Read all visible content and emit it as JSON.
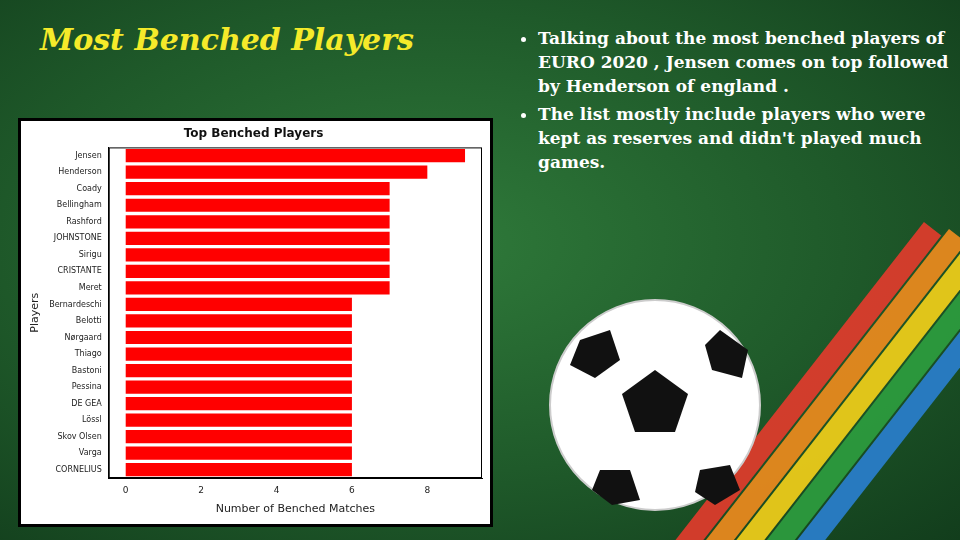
{
  "slide": {
    "title": "Most Benched Players",
    "bullets": [
      "Talking about the most benched players of EURO 2020 , Jensen comes on top followed by Henderson of england .",
      "The list mostly include players who were kept as reserves and didn't played much games."
    ]
  },
  "chart_data": {
    "type": "bar",
    "orientation": "horizontal",
    "title": "Top Benched Players",
    "x_label": "Number of Benched Matches",
    "y_label": "Players",
    "categories": [
      "Jensen",
      "Henderson",
      "Coady",
      "Bellingham",
      "Rashford",
      "JOHNSTONE",
      "Sirigu",
      "CRISTANTE",
      "Meret",
      "Bernardeschi",
      "Belotti",
      "Nørgaard",
      "Thiago",
      "Bastoni",
      "Pessina",
      "DE GEA",
      "Lössl",
      "Skov Olsen",
      "Varga",
      "CORNELIUS"
    ],
    "values": [
      9,
      8,
      7,
      7,
      7,
      7,
      7,
      7,
      7,
      6,
      6,
      6,
      6,
      6,
      6,
      6,
      6,
      6,
      6,
      6
    ],
    "color": "#ff0000",
    "xlim": [
      -0.45,
      9.45
    ],
    "xticks": [
      0,
      2,
      4,
      6,
      8
    ],
    "grid": false
  }
}
